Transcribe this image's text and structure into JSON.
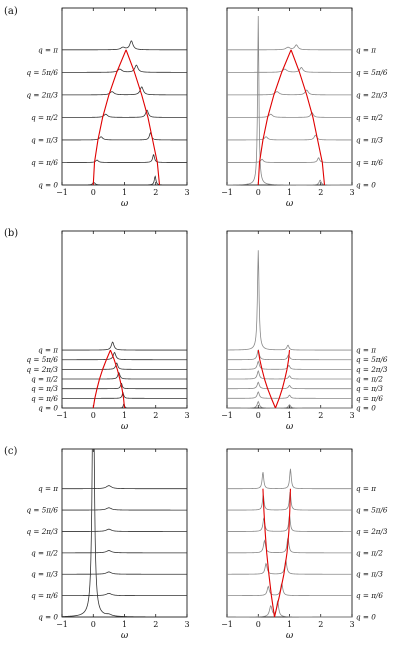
{
  "chart_data": [
    {
      "panel": "(a)",
      "side": "left",
      "type": "line",
      "xlabel": "ω",
      "xlim": [
        -1,
        3
      ],
      "xticks": [
        "−1",
        "0",
        "1",
        "2",
        "3"
      ],
      "offset_step": 0.14,
      "series": [
        {
          "name": "q = 0",
          "peaks": [
            {
              "x": 0.02,
              "h": 0.015,
              "w": 0.05
            },
            {
              "x": 1.98,
              "h": 0.055,
              "w": 0.03
            }
          ]
        },
        {
          "name": "q = π/6",
          "peaks": [
            {
              "x": 0.12,
              "h": 0.015,
              "w": 0.05
            },
            {
              "x": 1.93,
              "h": 0.05,
              "w": 0.035
            }
          ]
        },
        {
          "name": "q = π/3",
          "peaks": [
            {
              "x": 0.25,
              "h": 0.02,
              "w": 0.06
            },
            {
              "x": 1.83,
              "h": 0.045,
              "w": 0.04
            }
          ]
        },
        {
          "name": "q = π/2",
          "peaks": [
            {
              "x": 0.4,
              "h": 0.02,
              "w": 0.07
            },
            {
              "x": 1.72,
              "h": 0.045,
              "w": 0.05
            }
          ]
        },
        {
          "name": "q = 2π/3",
          "peaks": [
            {
              "x": 0.6,
              "h": 0.02,
              "w": 0.08
            },
            {
              "x": 1.55,
              "h": 0.05,
              "w": 0.06
            }
          ]
        },
        {
          "name": "q = 5π/6",
          "peaks": [
            {
              "x": 0.85,
              "h": 0.02,
              "w": 0.08
            },
            {
              "x": 1.38,
              "h": 0.045,
              "w": 0.06
            }
          ]
        },
        {
          "name": "q = π",
          "peaks": [
            {
              "x": 0.95,
              "h": 0.015,
              "w": 0.08
            },
            {
              "x": 1.22,
              "h": 0.055,
              "w": 0.06
            }
          ]
        }
      ],
      "red_curves": [
        {
          "x": [
            0.0,
            0.04,
            0.15,
            0.3,
            0.5,
            0.75,
            1.05
          ],
          "y": [
            0.0,
            0.14,
            0.28,
            0.42,
            0.56,
            0.7,
            0.84
          ]
        },
        {
          "x": [
            2.12,
            2.05,
            1.9,
            1.75,
            1.55,
            1.32,
            1.05
          ],
          "y": [
            0.0,
            0.14,
            0.28,
            0.42,
            0.56,
            0.7,
            0.84
          ]
        }
      ]
    },
    {
      "panel": "(a)",
      "side": "right",
      "type": "line",
      "xlabel": "ω",
      "xlim": [
        -1,
        3
      ],
      "xticks": [
        "−1",
        "0",
        "1",
        "2",
        "3"
      ],
      "offset_step": 0.14,
      "series": [
        {
          "name": "q = 0",
          "peaks": [
            {
              "x": 0.0,
              "h": 1.05,
              "w": 0.025
            },
            {
              "x": 1.98,
              "h": 0.03,
              "w": 0.04
            }
          ]
        },
        {
          "name": "q = π/6",
          "peaks": [
            {
              "x": 0.12,
              "h": 0.02,
              "w": 0.05
            },
            {
              "x": 1.93,
              "h": 0.03,
              "w": 0.04
            }
          ]
        },
        {
          "name": "q = π/3",
          "peaks": [
            {
              "x": 0.25,
              "h": 0.02,
              "w": 0.06
            },
            {
              "x": 1.83,
              "h": 0.03,
              "w": 0.05
            }
          ]
        },
        {
          "name": "q = π/2",
          "peaks": [
            {
              "x": 0.4,
              "h": 0.02,
              "w": 0.07
            },
            {
              "x": 1.72,
              "h": 0.03,
              "w": 0.05
            }
          ]
        },
        {
          "name": "q = 2π/3",
          "peaks": [
            {
              "x": 0.6,
              "h": 0.02,
              "w": 0.08
            },
            {
              "x": 1.55,
              "h": 0.03,
              "w": 0.06
            }
          ]
        },
        {
          "name": "q = 5π/6",
          "peaks": [
            {
              "x": 0.85,
              "h": 0.02,
              "w": 0.08
            },
            {
              "x": 1.38,
              "h": 0.03,
              "w": 0.06
            }
          ]
        },
        {
          "name": "q = π",
          "peaks": [
            {
              "x": 0.95,
              "h": 0.015,
              "w": 0.08
            },
            {
              "x": 1.22,
              "h": 0.03,
              "w": 0.06
            }
          ]
        }
      ],
      "red_curves": [
        {
          "x": [
            0.0,
            0.04,
            0.15,
            0.3,
            0.5,
            0.75,
            1.05
          ],
          "y": [
            0.0,
            0.14,
            0.28,
            0.42,
            0.56,
            0.7,
            0.84
          ]
        },
        {
          "x": [
            2.12,
            2.05,
            1.9,
            1.75,
            1.55,
            1.32,
            1.05
          ],
          "y": [
            0.0,
            0.14,
            0.28,
            0.42,
            0.56,
            0.7,
            0.84
          ]
        }
      ]
    },
    {
      "panel": "(b)",
      "side": "left",
      "type": "line",
      "xlabel": "ω",
      "xlim": [
        -1,
        3
      ],
      "xticks": [
        "−1",
        "0",
        "1",
        "2",
        "3"
      ],
      "offset_step": 0.06,
      "series": [
        {
          "name": "q = 0",
          "peaks": [
            {
              "x": 0.98,
              "h": 0.03,
              "w": 0.02
            }
          ]
        },
        {
          "name": "q = π/6",
          "peaks": [
            {
              "x": 0.95,
              "h": 0.035,
              "w": 0.03
            }
          ]
        },
        {
          "name": "q = π/3",
          "peaks": [
            {
              "x": 0.9,
              "h": 0.035,
              "w": 0.03
            }
          ]
        },
        {
          "name": "q = π/2",
          "peaks": [
            {
              "x": 0.82,
              "h": 0.04,
              "w": 0.04
            }
          ]
        },
        {
          "name": "q = 2π/3",
          "peaks": [
            {
              "x": 0.75,
              "h": 0.04,
              "w": 0.04
            }
          ]
        },
        {
          "name": "q = 5π/6",
          "peaks": [
            {
              "x": 0.68,
              "h": 0.045,
              "w": 0.05
            }
          ]
        },
        {
          "name": "q = π",
          "peaks": [
            {
              "x": 0.62,
              "h": 0.05,
              "w": 0.05
            }
          ]
        }
      ],
      "red_curves": [
        {
          "x": [
            0.0,
            0.05,
            0.12,
            0.2,
            0.3,
            0.42,
            0.55
          ],
          "y": [
            0.0,
            0.06,
            0.12,
            0.18,
            0.24,
            0.3,
            0.36
          ]
        },
        {
          "x": [
            1.0,
            0.97,
            0.92,
            0.85,
            0.77,
            0.67,
            0.55
          ],
          "y": [
            0.0,
            0.06,
            0.12,
            0.18,
            0.24,
            0.3,
            0.36
          ]
        }
      ]
    },
    {
      "panel": "(b)",
      "side": "right",
      "type": "line",
      "xlabel": "ω",
      "xlim": [
        -1,
        3
      ],
      "xticks": [
        "−1",
        "0",
        "1",
        "2",
        "3"
      ],
      "offset_step": 0.06,
      "series": [
        {
          "name": "q = 0",
          "peaks": [
            {
              "x": 0.0,
              "h": 0.04,
              "w": 0.04
            },
            {
              "x": 1.0,
              "h": 0.02,
              "w": 0.04
            }
          ]
        },
        {
          "name": "q = π/6",
          "peaks": [
            {
              "x": 0.0,
              "h": 0.04,
              "w": 0.04
            },
            {
              "x": 1.0,
              "h": 0.02,
              "w": 0.04
            }
          ]
        },
        {
          "name": "q = π/3",
          "peaks": [
            {
              "x": 0.0,
              "h": 0.04,
              "w": 0.04
            },
            {
              "x": 1.0,
              "h": 0.02,
              "w": 0.04
            }
          ]
        },
        {
          "name": "q = π/2",
          "peaks": [
            {
              "x": 0.0,
              "h": 0.05,
              "w": 0.04
            },
            {
              "x": 1.0,
              "h": 0.02,
              "w": 0.04
            }
          ]
        },
        {
          "name": "q = 2π/3",
          "peaks": [
            {
              "x": 0.0,
              "h": 0.05,
              "w": 0.04
            },
            {
              "x": 0.98,
              "h": 0.025,
              "w": 0.04
            }
          ]
        },
        {
          "name": "q = 5π/6",
          "peaks": [
            {
              "x": 0.0,
              "h": 0.06,
              "w": 0.04
            },
            {
              "x": 0.97,
              "h": 0.03,
              "w": 0.04
            }
          ]
        },
        {
          "name": "q = π",
          "peaks": [
            {
              "x": 0.0,
              "h": 0.62,
              "w": 0.03
            },
            {
              "x": 0.95,
              "h": 0.03,
              "w": 0.04
            }
          ]
        }
      ],
      "red_curves": [
        {
          "x": [
            0.55,
            0.42,
            0.3,
            0.2,
            0.12,
            0.05,
            0.0
          ],
          "y": [
            0.0,
            0.06,
            0.12,
            0.18,
            0.24,
            0.3,
            0.36
          ]
        },
        {
          "x": [
            0.55,
            0.67,
            0.77,
            0.85,
            0.92,
            0.97,
            1.0
          ],
          "y": [
            0.0,
            0.06,
            0.12,
            0.18,
            0.24,
            0.3,
            0.36
          ]
        }
      ]
    },
    {
      "panel": "(c)",
      "side": "left",
      "type": "line",
      "xlabel": "ω",
      "xlim": [
        -1,
        3
      ],
      "xticks": [
        "−1",
        "0",
        "1",
        "2",
        "3"
      ],
      "offset_step": 0.14,
      "series": [
        {
          "name": "q = 0",
          "peaks": [
            {
              "x": 0.0,
              "h": 1.75,
              "w": 0.04
            },
            {
              "x": 0.5,
              "h": 0.01,
              "w": 0.1
            }
          ]
        },
        {
          "name": "q = π/6",
          "peaks": [
            {
              "x": 0.5,
              "h": 0.015,
              "w": 0.1
            }
          ]
        },
        {
          "name": "q = π/3",
          "peaks": [
            {
              "x": 0.5,
              "h": 0.015,
              "w": 0.1
            }
          ]
        },
        {
          "name": "q = π/2",
          "peaks": [
            {
              "x": 0.5,
              "h": 0.015,
              "w": 0.1
            }
          ]
        },
        {
          "name": "q = 2π/3",
          "peaks": [
            {
              "x": 0.5,
              "h": 0.015,
              "w": 0.1
            }
          ]
        },
        {
          "name": "q = 5π/6",
          "peaks": [
            {
              "x": 0.5,
              "h": 0.015,
              "w": 0.1
            }
          ]
        },
        {
          "name": "q = π",
          "peaks": [
            {
              "x": 0.5,
              "h": 0.02,
              "w": 0.1
            }
          ]
        }
      ],
      "red_curves": []
    },
    {
      "panel": "(c)",
      "side": "right",
      "type": "line",
      "xlabel": "ω",
      "xlim": [
        -1,
        3
      ],
      "xticks": [
        "−1",
        "0",
        "1",
        "2",
        "3"
      ],
      "offset_step": 0.14,
      "series": [
        {
          "name": "q = 0",
          "peaks": [
            {
              "x": 0.4,
              "h": 0.07,
              "w": 0.05
            },
            {
              "x": 0.62,
              "h": 0.1,
              "w": 0.04
            }
          ]
        },
        {
          "name": "q = π/6",
          "peaks": [
            {
              "x": 0.32,
              "h": 0.06,
              "w": 0.04
            },
            {
              "x": 0.75,
              "h": 0.08,
              "w": 0.04
            }
          ]
        },
        {
          "name": "q = π/3",
          "peaks": [
            {
              "x": 0.25,
              "h": 0.07,
              "w": 0.04
            },
            {
              "x": 0.88,
              "h": 0.09,
              "w": 0.04
            }
          ]
        },
        {
          "name": "q = π/2",
          "peaks": [
            {
              "x": 0.2,
              "h": 0.08,
              "w": 0.04
            },
            {
              "x": 0.95,
              "h": 0.1,
              "w": 0.035
            }
          ]
        },
        {
          "name": "q = 2π/3",
          "peaks": [
            {
              "x": 0.18,
              "h": 0.09,
              "w": 0.035
            },
            {
              "x": 1.0,
              "h": 0.11,
              "w": 0.03
            }
          ]
        },
        {
          "name": "q = 5π/6",
          "peaks": [
            {
              "x": 0.16,
              "h": 0.1,
              "w": 0.03
            },
            {
              "x": 1.02,
              "h": 0.12,
              "w": 0.03
            }
          ]
        },
        {
          "name": "q = π",
          "peaks": [
            {
              "x": 0.15,
              "h": 0.11,
              "w": 0.03
            },
            {
              "x": 1.03,
              "h": 0.13,
              "w": 0.03
            }
          ]
        }
      ],
      "red_curves": [
        {
          "x": [
            0.52,
            0.42,
            0.34,
            0.27,
            0.22,
            0.18,
            0.15
          ],
          "y": [
            0.0,
            0.14,
            0.28,
            0.42,
            0.56,
            0.7,
            0.84
          ]
        },
        {
          "x": [
            0.52,
            0.68,
            0.82,
            0.92,
            0.98,
            1.01,
            1.03
          ],
          "y": [
            0.0,
            0.14,
            0.28,
            0.42,
            0.56,
            0.7,
            0.84
          ]
        }
      ]
    }
  ],
  "colors": {
    "left_trace": "#333333",
    "right_trace": "#888888",
    "dispersion": "#e00000",
    "axes": "#000000"
  }
}
